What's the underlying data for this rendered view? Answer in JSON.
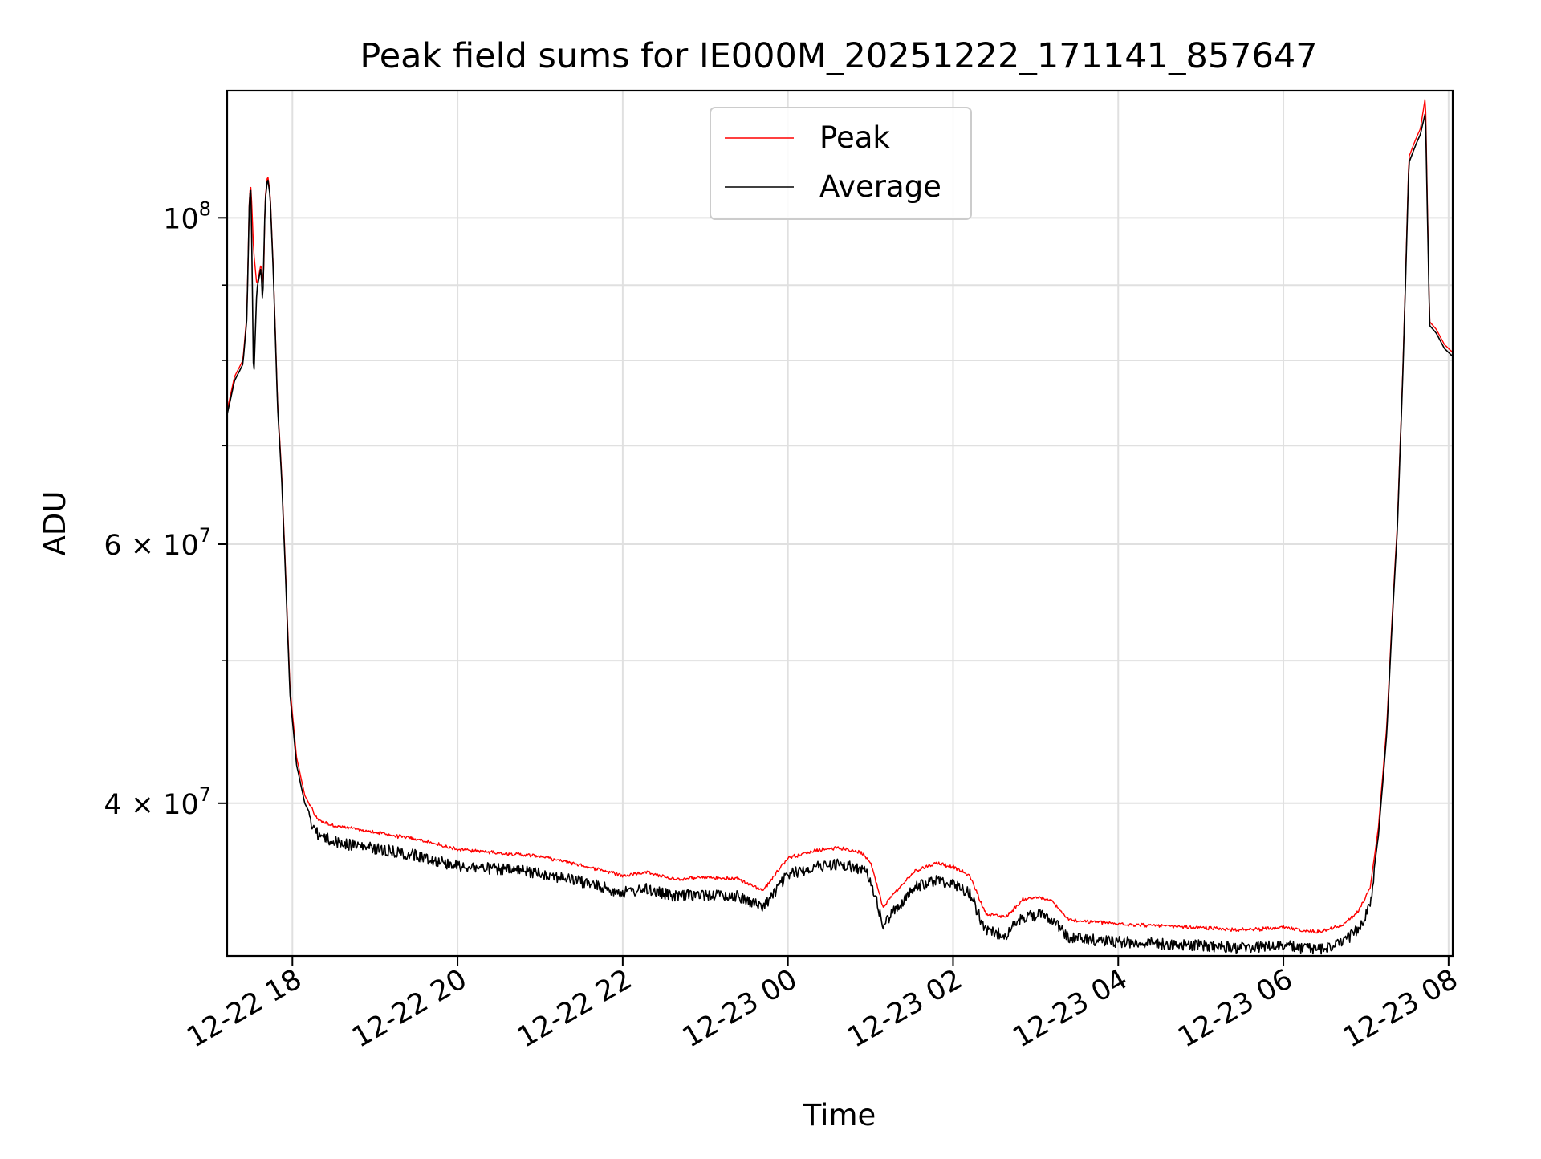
{
  "chart_data": {
    "type": "line",
    "title": "Peak field sums for IE000M_20251222_171141_857647",
    "xlabel": "Time",
    "ylabel": "ADU",
    "y_scale": "log",
    "ylim": [
      31500000,
      122000000
    ],
    "xlim_hours": [
      -0.79,
      14.05
    ],
    "grid": true,
    "legend_position": "top-center",
    "x_ticks": [
      {
        "hours": 0,
        "label": "12-22 18"
      },
      {
        "hours": 2,
        "label": "12-22 20"
      },
      {
        "hours": 4,
        "label": "12-22 22"
      },
      {
        "hours": 6,
        "label": "12-23 00"
      },
      {
        "hours": 8,
        "label": "12-23 02"
      },
      {
        "hours": 10,
        "label": "12-23 04"
      },
      {
        "hours": 12,
        "label": "12-23 06"
      },
      {
        "hours": 14,
        "label": "12-23 08"
      }
    ],
    "y_ticks": [
      {
        "value": 40000000,
        "base": "4 × 10",
        "exp": "7"
      },
      {
        "value": 60000000,
        "base": "6 × 10",
        "exp": "7"
      },
      {
        "value": 100000000,
        "base": "10",
        "exp": "8"
      }
    ],
    "y_minor_ticks": [
      50000000,
      70000000,
      80000000,
      90000000
    ],
    "series": [
      {
        "name": "Peak",
        "color": "#ff0000",
        "points": [
          [
            -0.79,
            74000000
          ],
          [
            -0.7,
            78000000
          ],
          [
            -0.6,
            80000000
          ],
          [
            -0.55,
            86000000
          ],
          [
            -0.52,
            104000000
          ],
          [
            -0.5,
            105000000
          ],
          [
            -0.47,
            95000000
          ],
          [
            -0.43,
            90000000
          ],
          [
            -0.38,
            93000000
          ],
          [
            -0.35,
            90000000
          ],
          [
            -0.33,
            103000000
          ],
          [
            -0.3,
            107000000
          ],
          [
            -0.27,
            104000000
          ],
          [
            -0.23,
            92000000
          ],
          [
            -0.18,
            75000000
          ],
          [
            -0.13,
            67000000
          ],
          [
            -0.08,
            57000000
          ],
          [
            -0.03,
            48000000
          ],
          [
            0.05,
            43000000
          ],
          [
            0.15,
            40500000
          ],
          [
            0.3,
            39000000
          ],
          [
            0.5,
            38600000
          ],
          [
            1.0,
            38200000
          ],
          [
            1.5,
            37800000
          ],
          [
            2.0,
            37200000
          ],
          [
            2.5,
            37000000
          ],
          [
            3.0,
            36800000
          ],
          [
            3.5,
            36300000
          ],
          [
            4.0,
            35700000
          ],
          [
            4.3,
            35900000
          ],
          [
            4.6,
            35500000
          ],
          [
            5.0,
            35600000
          ],
          [
            5.4,
            35500000
          ],
          [
            5.7,
            34900000
          ],
          [
            6.0,
            36700000
          ],
          [
            6.3,
            37100000
          ],
          [
            6.6,
            37300000
          ],
          [
            6.9,
            37000000
          ],
          [
            7.0,
            36500000
          ],
          [
            7.15,
            34000000
          ],
          [
            7.3,
            34800000
          ],
          [
            7.55,
            36000000
          ],
          [
            7.8,
            36400000
          ],
          [
            8.0,
            36200000
          ],
          [
            8.2,
            35700000
          ],
          [
            8.4,
            33600000
          ],
          [
            8.65,
            33500000
          ],
          [
            8.85,
            34400000
          ],
          [
            9.05,
            34500000
          ],
          [
            9.2,
            34300000
          ],
          [
            9.4,
            33300000
          ],
          [
            9.7,
            33200000
          ],
          [
            10.0,
            33100000
          ],
          [
            10.5,
            33000000
          ],
          [
            11.0,
            32900000
          ],
          [
            11.5,
            32800000
          ],
          [
            12.0,
            32900000
          ],
          [
            12.4,
            32700000
          ],
          [
            12.7,
            33000000
          ],
          [
            12.9,
            33700000
          ],
          [
            13.05,
            35000000
          ],
          [
            13.15,
            38500000
          ],
          [
            13.25,
            45000000
          ],
          [
            13.32,
            54000000
          ],
          [
            13.38,
            62000000
          ],
          [
            13.45,
            80000000
          ],
          [
            13.52,
            110000000
          ],
          [
            13.6,
            113000000
          ],
          [
            13.66,
            115000000
          ],
          [
            13.72,
            121000000
          ],
          [
            13.77,
            85000000
          ],
          [
            13.85,
            84000000
          ],
          [
            13.95,
            82000000
          ],
          [
            14.05,
            81000000
          ]
        ]
      },
      {
        "name": "Average",
        "color": "#000000",
        "points": [
          [
            -0.79,
            73500000
          ],
          [
            -0.7,
            77500000
          ],
          [
            -0.6,
            79500000
          ],
          [
            -0.55,
            85500000
          ],
          [
            -0.52,
            103500000
          ],
          [
            -0.5,
            104500000
          ],
          [
            -0.47,
            77000000
          ],
          [
            -0.43,
            89500000
          ],
          [
            -0.38,
            92500000
          ],
          [
            -0.36,
            87000000
          ],
          [
            -0.33,
            102500000
          ],
          [
            -0.3,
            106500000
          ],
          [
            -0.27,
            103500000
          ],
          [
            -0.23,
            91500000
          ],
          [
            -0.18,
            74500000
          ],
          [
            -0.13,
            66500000
          ],
          [
            -0.08,
            56500000
          ],
          [
            -0.03,
            47500000
          ],
          [
            0.05,
            42500000
          ],
          [
            0.15,
            40000000
          ],
          [
            0.3,
            38500000
          ],
          [
            0.5,
            38000000
          ],
          [
            1.0,
            37600000
          ],
          [
            1.5,
            37200000
          ],
          [
            2.0,
            36600000
          ],
          [
            2.5,
            36400000
          ],
          [
            3.0,
            36200000
          ],
          [
            3.5,
            35700000
          ],
          [
            4.0,
            35100000
          ],
          [
            4.3,
            35300000
          ],
          [
            4.6,
            34900000
          ],
          [
            5.0,
            35000000
          ],
          [
            5.4,
            34900000
          ],
          [
            5.7,
            34300000
          ],
          [
            6.0,
            36100000
          ],
          [
            6.3,
            36500000
          ],
          [
            6.6,
            36700000
          ],
          [
            6.9,
            36400000
          ],
          [
            7.0,
            35900000
          ],
          [
            7.15,
            33300000
          ],
          [
            7.3,
            34200000
          ],
          [
            7.55,
            35400000
          ],
          [
            7.8,
            35800000
          ],
          [
            8.0,
            35600000
          ],
          [
            8.2,
            35100000
          ],
          [
            8.4,
            33000000
          ],
          [
            8.65,
            32900000
          ],
          [
            8.85,
            33800000
          ],
          [
            9.05,
            33900000
          ],
          [
            9.2,
            33700000
          ],
          [
            9.4,
            32700000
          ],
          [
            9.7,
            32600000
          ],
          [
            10.0,
            32500000
          ],
          [
            10.5,
            32400000
          ],
          [
            11.0,
            32300000
          ],
          [
            11.5,
            32200000
          ],
          [
            12.0,
            32300000
          ],
          [
            12.4,
            32100000
          ],
          [
            12.7,
            32400000
          ],
          [
            12.9,
            33100000
          ],
          [
            13.05,
            34400000
          ],
          [
            13.15,
            38000000
          ],
          [
            13.25,
            44500000
          ],
          [
            13.32,
            53500000
          ],
          [
            13.38,
            61500000
          ],
          [
            13.45,
            79500000
          ],
          [
            13.52,
            109000000
          ],
          [
            13.6,
            112000000
          ],
          [
            13.66,
            114000000
          ],
          [
            13.72,
            118000000
          ],
          [
            13.77,
            84500000
          ],
          [
            13.85,
            83500000
          ],
          [
            13.95,
            81500000
          ],
          [
            14.05,
            80500000
          ]
        ]
      }
    ]
  }
}
